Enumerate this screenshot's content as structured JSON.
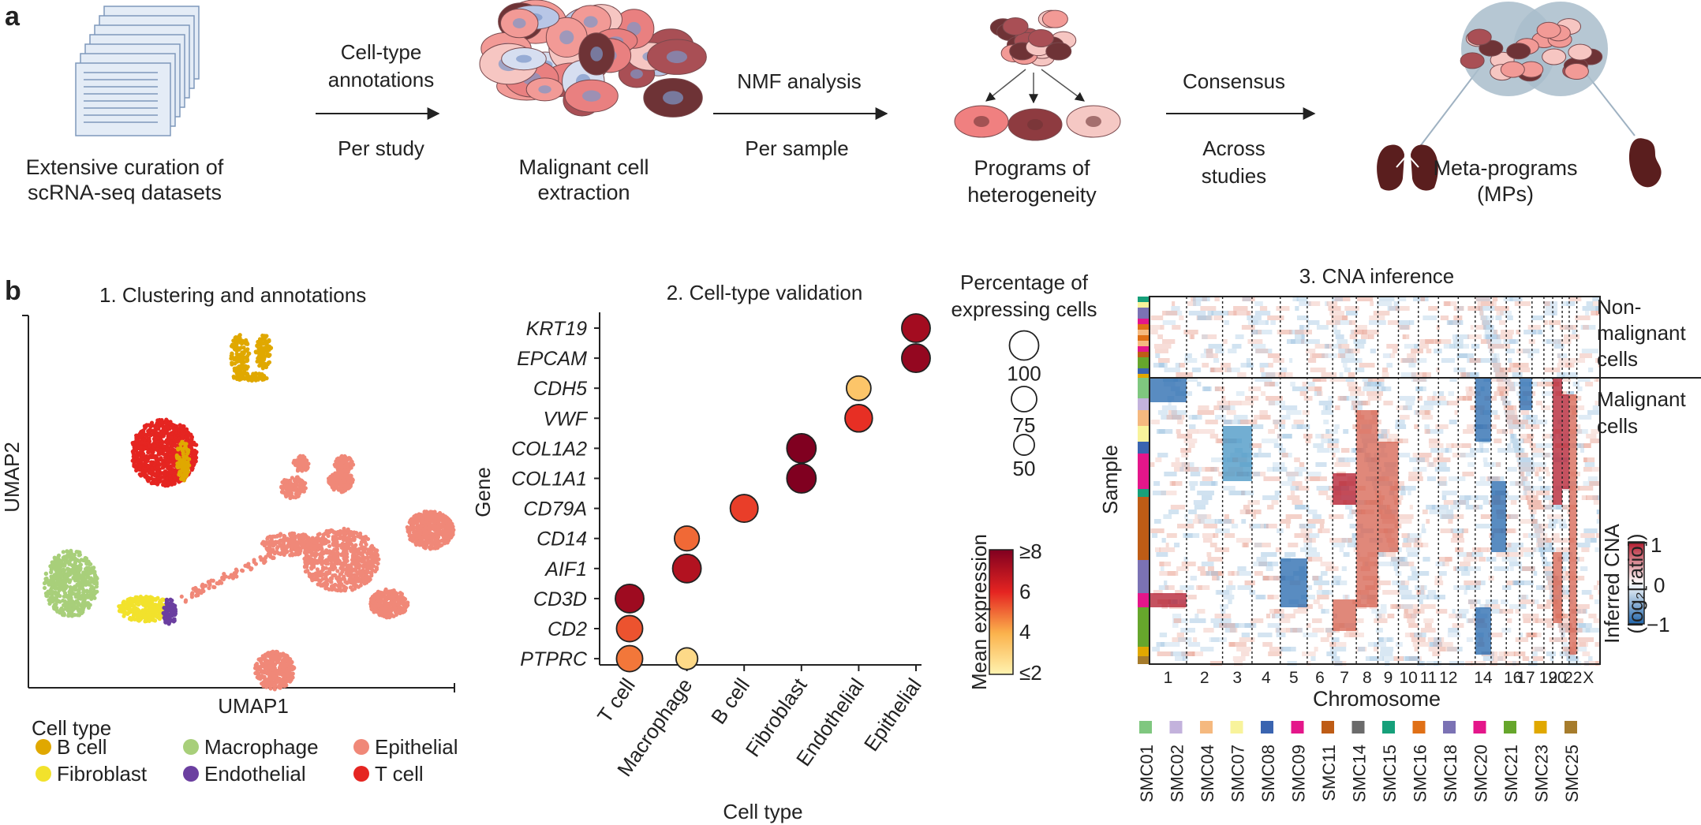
{
  "panel_a": {
    "letter": "a",
    "step1_label": [
      "Extensive curation of",
      "scRNA-seq datasets"
    ],
    "arrow1_top": [
      "Cell-type",
      "annotations"
    ],
    "arrow1_bottom": "Per study",
    "step2_label": [
      "Malignant cell",
      "extraction"
    ],
    "arrow2_top": "NMF analysis",
    "arrow2_bottom": "Per sample",
    "step3_label": [
      "Programs of",
      "heterogeneity"
    ],
    "arrow3_top": "Consensus",
    "arrow3_bottom": [
      "Across",
      "studies"
    ],
    "step4_label": [
      "Meta-programs",
      "(MPs)"
    ]
  },
  "panel_b": {
    "letter": "b",
    "umap": {
      "title": "1.  Clustering and annotations",
      "xlabel": "UMAP1",
      "ylabel": "UMAP2",
      "legend_title": "Cell type",
      "legend": [
        {
          "label": "B cell",
          "color": "#E0A800"
        },
        {
          "label": "Macrophage",
          "color": "#A8CF7A"
        },
        {
          "label": "Epithelial",
          "color": "#F08878"
        },
        {
          "label": "Fibroblast",
          "color": "#F2E22C"
        },
        {
          "label": "Endothelial",
          "color": "#6B3FA0"
        },
        {
          "label": "T cell",
          "color": "#E52521"
        }
      ]
    },
    "cna": {
      "title": "3. CNA inference",
      "xlabel": "Chromosome",
      "ylabel": "Sample",
      "nonmalignant_label": [
        "Non-",
        "malignant",
        "cells"
      ],
      "malignant_label": [
        "Malignant",
        "cells"
      ],
      "chromosome_labels": [
        "1",
        "2",
        "3",
        "4",
        "5",
        "6",
        "7",
        "8",
        "9",
        "10",
        "11",
        "12",
        "14",
        "16",
        "17",
        "19",
        "20",
        "22",
        "X"
      ],
      "colorbar_label": [
        "Inferred CNA",
        "(log₂[ratio])"
      ],
      "colorbar_ticks": [
        "1",
        "0",
        "−1"
      ],
      "colorbar_colors": [
        "#B2182B",
        "#FFFFFF",
        "#2166AC"
      ],
      "samples": [
        {
          "label": "SMC01",
          "color": "#7FC77F"
        },
        {
          "label": "SMC02",
          "color": "#C3B2DC"
        },
        {
          "label": "SMC04",
          "color": "#F5B97F"
        },
        {
          "label": "SMC07",
          "color": "#F8F39B"
        },
        {
          "label": "SMC08",
          "color": "#3A64B0"
        },
        {
          "label": "SMC09",
          "color": "#E4168A"
        },
        {
          "label": "SMC11",
          "color": "#BE5C16"
        },
        {
          "label": "SMC14",
          "color": "#6B6B6B"
        },
        {
          "label": "SMC15",
          "color": "#16A07A"
        },
        {
          "label": "SMC16",
          "color": "#E07016"
        },
        {
          "label": "SMC18",
          "color": "#7B72B4"
        },
        {
          "label": "SMC20",
          "color": "#E4168A"
        },
        {
          "label": "SMC21",
          "color": "#66A62C"
        },
        {
          "label": "SMC23",
          "color": "#E0A800"
        },
        {
          "label": "SMC25",
          "color": "#A67C2C"
        }
      ]
    }
  },
  "chart_data": {
    "type": "scatter",
    "title": "2. Cell-type validation",
    "xlabel": "Cell type",
    "ylabel": "Gene",
    "categories": [
      "T cell",
      "Macrophage",
      "B cell",
      "Fibroblast",
      "Endothelial",
      "Epithelial"
    ],
    "genes": [
      "KRT19",
      "EPCAM",
      "CDH5",
      "VWF",
      "COL1A2",
      "COL1A1",
      "CD79A",
      "CD14",
      "AIF1",
      "CD3D",
      "CD2",
      "PTPRC"
    ],
    "points": [
      {
        "gene": "KRT19",
        "cell_type": "Epithelial",
        "pct": 95,
        "mean_expression": 7.3
      },
      {
        "gene": "EPCAM",
        "cell_type": "Epithelial",
        "pct": 95,
        "mean_expression": 7.6
      },
      {
        "gene": "CDH5",
        "cell_type": "Endothelial",
        "pct": 70,
        "mean_expression": 3.4
      },
      {
        "gene": "VWF",
        "cell_type": "Endothelial",
        "pct": 88,
        "mean_expression": 5.8
      },
      {
        "gene": "COL1A2",
        "cell_type": "Fibroblast",
        "pct": 100,
        "mean_expression": 8.0
      },
      {
        "gene": "COL1A1",
        "cell_type": "Fibroblast",
        "pct": 100,
        "mean_expression": 8.0
      },
      {
        "gene": "CD79A",
        "cell_type": "B cell",
        "pct": 90,
        "mean_expression": 5.6
      },
      {
        "gene": "CD14",
        "cell_type": "Macrophage",
        "pct": 72,
        "mean_expression": 5.0
      },
      {
        "gene": "AIF1",
        "cell_type": "Macrophage",
        "pct": 95,
        "mean_expression": 7.0
      },
      {
        "gene": "CD3D",
        "cell_type": "T cell",
        "pct": 95,
        "mean_expression": 7.4
      },
      {
        "gene": "CD2",
        "cell_type": "T cell",
        "pct": 80,
        "mean_expression": 5.3
      },
      {
        "gene": "PTPRC",
        "cell_type": "T cell",
        "pct": 80,
        "mean_expression": 4.8
      },
      {
        "gene": "PTPRC",
        "cell_type": "Macrophage",
        "pct": 55,
        "mean_expression": 2.8
      }
    ],
    "size_legend": {
      "title": [
        "Percentage of",
        "expressing cells"
      ],
      "values": [
        100,
        75,
        50
      ]
    },
    "color_legend": {
      "title": "Mean expression",
      "min": 2,
      "max": 8,
      "ticks": [
        "≥8",
        "6",
        "4",
        "≤2"
      ]
    }
  }
}
